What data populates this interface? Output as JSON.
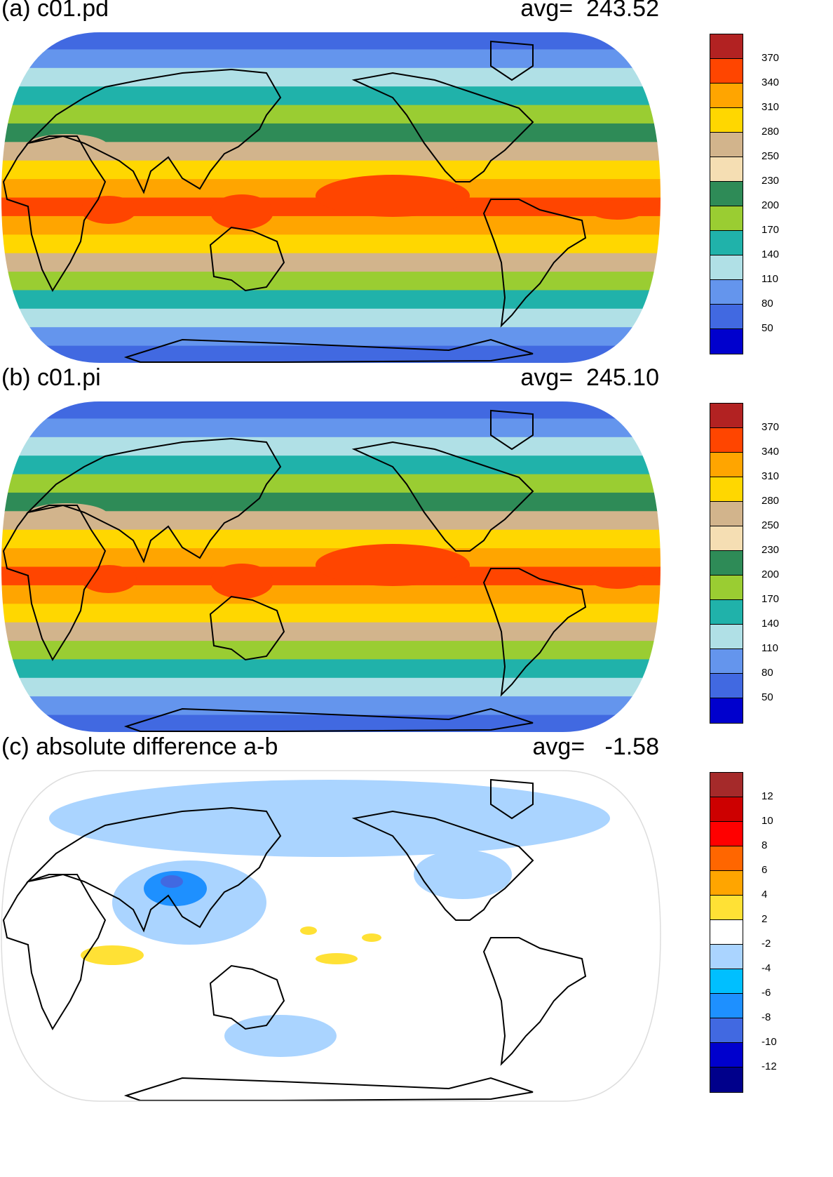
{
  "chart_data": [
    {
      "type": "heatmap",
      "projection": "Robinson global map",
      "title": "(a) c01.pd",
      "avg_label": "avg=",
      "avg_value": "243.52",
      "colorbar": {
        "levels": [
          "370",
          "340",
          "310",
          "280",
          "250",
          "230",
          "200",
          "170",
          "140",
          "110",
          "80",
          "50"
        ],
        "colors": [
          "#b22222",
          "#ff4500",
          "#ffa500",
          "#ffd700",
          "#d2b48c",
          "#f5deb3",
          "#2e8b57",
          "#9acd32",
          "#20b2aa",
          "#b0e0e6",
          "#6495ed",
          "#4169e1",
          "#0000cd"
        ]
      },
      "zonal_pattern": [
        50,
        80,
        110,
        140,
        170,
        200,
        250,
        280,
        310,
        340,
        310,
        280,
        250,
        170,
        140,
        110,
        80,
        50
      ]
    },
    {
      "type": "heatmap",
      "projection": "Robinson global map",
      "title": "(b) c01.pi",
      "avg_label": "avg=",
      "avg_value": "245.10",
      "colorbar": {
        "levels": [
          "370",
          "340",
          "310",
          "280",
          "250",
          "230",
          "200",
          "170",
          "140",
          "110",
          "80",
          "50"
        ],
        "colors": [
          "#b22222",
          "#ff4500",
          "#ffa500",
          "#ffd700",
          "#d2b48c",
          "#f5deb3",
          "#2e8b57",
          "#9acd32",
          "#20b2aa",
          "#b0e0e6",
          "#6495ed",
          "#4169e1",
          "#0000cd"
        ]
      },
      "zonal_pattern": [
        50,
        80,
        110,
        140,
        170,
        200,
        250,
        280,
        310,
        340,
        310,
        280,
        250,
        170,
        140,
        110,
        80,
        50
      ]
    },
    {
      "type": "heatmap",
      "projection": "Robinson global map",
      "title": "(c) absolute difference a-b",
      "avg_label": "avg=",
      "avg_value": "-1.58",
      "colorbar": {
        "levels": [
          "12",
          "10",
          "8",
          "6",
          "4",
          "2",
          "-2",
          "-4",
          "-6",
          "-8",
          "-10",
          "-12"
        ],
        "colors": [
          "#a52a2a",
          "#cd0000",
          "#ff0000",
          "#ff6600",
          "#ffa500",
          "#ffe135",
          "#ffffff",
          "#aad4ff",
          "#00bfff",
          "#1e90ff",
          "#4169e1",
          "#0000cd",
          "#00008b"
        ]
      }
    }
  ]
}
